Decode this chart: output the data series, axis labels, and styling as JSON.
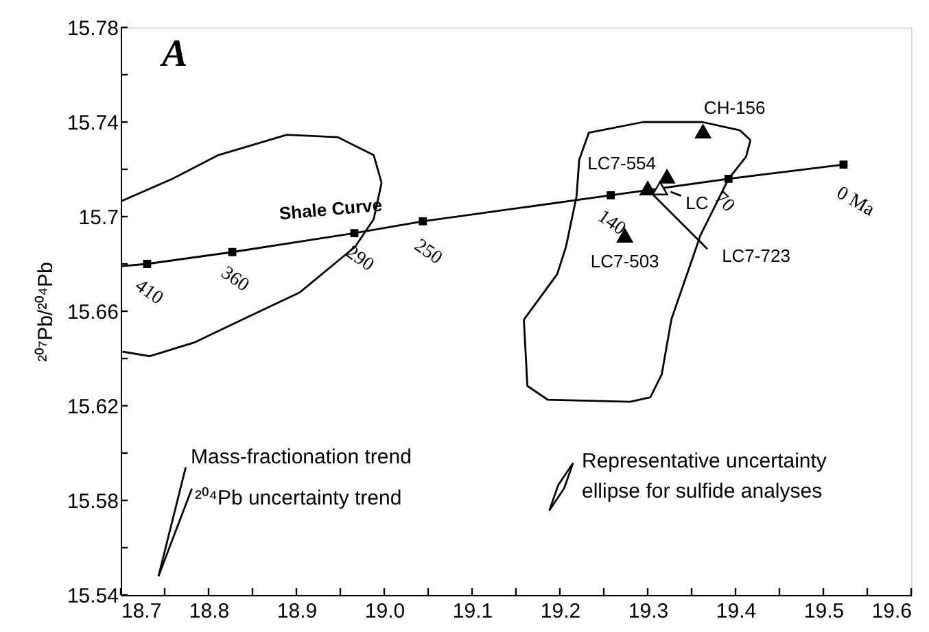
{
  "chart_data": {
    "type": "line",
    "ylabel": "²⁰⁷Pb/²⁰⁴Pb",
    "xlim": [
      18.7,
      19.6
    ],
    "ylim": [
      15.54,
      15.78
    ],
    "xticks": [
      18.7,
      {
        "value": 18.75,
        "label": null
      },
      18.8,
      {
        "value": 18.85,
        "label": null
      },
      18.9,
      {
        "value": 18.95,
        "label": null
      },
      {
        "value": 19.0,
        "label": "19.0"
      },
      {
        "value": 19.05,
        "label": null
      },
      19.1,
      {
        "value": 19.15,
        "label": null
      },
      19.2,
      {
        "value": 19.25,
        "label": null
      },
      19.3,
      {
        "value": 19.35,
        "label": null
      },
      19.4,
      {
        "value": 19.45,
        "label": null
      },
      19.5,
      {
        "value": 19.55,
        "label": null
      },
      19.6
    ],
    "yticks": [
      15.54,
      {
        "value": 15.56,
        "label": null
      },
      15.58,
      {
        "value": 15.6,
        "label": null
      },
      15.62,
      {
        "value": 15.64,
        "label": null
      },
      15.66,
      {
        "value": 15.68,
        "label": null
      },
      15.7,
      {
        "value": 15.72,
        "label": null
      },
      15.74,
      {
        "value": 15.76,
        "label": null
      },
      15.78
    ],
    "grid": false,
    "series": [
      {
        "color": "#000000",
        "x": [
          18.7,
          18.73,
          18.827,
          18.966,
          19.044,
          19.258,
          19.392,
          19.523
        ],
        "values": [
          15.679,
          15.68,
          15.685,
          15.693,
          15.698,
          15.709,
          15.716,
          15.722
        ]
      },
      {
        "type": "scatter",
        "marker": "square",
        "color": "#000000",
        "x": [
          18.73,
          18.827,
          18.966,
          19.044,
          19.258,
          19.392,
          19.523
        ],
        "values": [
          15.68,
          15.685,
          15.693,
          15.698,
          15.709,
          15.716,
          15.722
        ]
      },
      {
        "color": "#010101",
        "x": [
          19.159,
          19.197,
          19.207,
          19.219,
          19.222,
          19.233,
          19.295,
          19.362,
          19.405,
          19.417
        ],
        "values": [
          15.6564,
          15.6757,
          15.6873,
          15.7086,
          15.724,
          15.7355,
          15.74,
          15.74,
          15.7365,
          15.7323
        ]
      },
      {
        "color": "#020202",
        "x": [
          19.159,
          19.163,
          19.186,
          19.28,
          19.303,
          19.316,
          19.327,
          19.352,
          19.36,
          19.392,
          19.412,
          19.417
        ],
        "values": [
          15.6564,
          15.6284,
          15.6226,
          15.6217,
          15.6236,
          15.6333,
          15.6566,
          15.6834,
          15.6921,
          15.7159,
          15.7253,
          15.7323
        ]
      },
      {
        "color": "#030303",
        "x": [
          18.701,
          18.759,
          18.811,
          18.889,
          18.947,
          18.988,
          18.997
        ],
        "values": [
          15.7066,
          15.716,
          15.726,
          15.7346,
          15.7336,
          15.726,
          15.7143
        ]
      },
      {
        "color": "#040404",
        "x": [
          18.702,
          18.733,
          18.784,
          18.838,
          18.904,
          18.967,
          18.988,
          18.997
        ],
        "values": [
          15.6429,
          15.641,
          15.6468,
          15.6564,
          15.668,
          15.6873,
          15.6989,
          15.7143
        ]
      },
      {
        "type": "scatter",
        "marker": "triangle",
        "color": "#000000",
        "x": [
          19.363,
          19.322,
          19.3,
          19.274
        ],
        "values": [
          15.736,
          15.717,
          15.712,
          15.692
        ]
      },
      {
        "type": "scatter",
        "marker": "triangle",
        "color": "#ffffff",
        "x": [
          19.314
        ],
        "values": [
          15.712
        ]
      },
      {
        "color": "#050505",
        "x": [
          19.326,
          19.338
        ],
        "values": [
          15.7105,
          15.7088
        ]
      },
      {
        "color": "#060606",
        "x": [
          19.3,
          19.368
        ],
        "values": [
          15.7115,
          15.6863
        ]
      },
      {
        "color": "#070707",
        "x": [
          18.743,
          18.774
        ],
        "values": [
          15.548,
          15.594
        ]
      },
      {
        "color": "#080808",
        "x": [
          18.743,
          18.781
        ],
        "values": [
          15.548,
          15.585
        ]
      },
      {
        "color": "#090909",
        "x": [
          19.188,
          19.198,
          19.215
        ],
        "values": [
          15.5757,
          15.5864,
          15.5958
        ]
      },
      {
        "color": "#0a0a0a",
        "x": [
          19.188,
          19.205,
          19.215
        ],
        "values": [
          15.5757,
          15.5852,
          15.5958
        ]
      }
    ],
    "annotations": [
      "A",
      "Shale Curve",
      {
        "text": "410",
        "x": 18.73,
        "y": 15.68
      },
      {
        "text": "360",
        "x": 18.827,
        "y": 15.685
      },
      {
        "text": "290",
        "x": 18.966,
        "y": 15.693
      },
      {
        "text": "250",
        "x": 19.044,
        "y": 15.698
      },
      {
        "text": "140",
        "x": 19.258,
        "y": 15.709
      },
      {
        "text": "70",
        "x": 19.392,
        "y": 15.716
      },
      {
        "text": "0 Ma",
        "x": 19.523,
        "y": 15.722
      },
      {
        "text": "CH-156",
        "x": 19.363,
        "y": 15.736
      },
      {
        "text": "LC7-554",
        "x": 19.322,
        "y": 15.717
      },
      {
        "text": "LC",
        "x": 19.314,
        "y": 15.712
      },
      {
        "text": "LC7-503",
        "x": 19.274,
        "y": 15.692
      },
      "LC7-723",
      "Mass-fractionation trend",
      "²⁰⁴Pb uncertainty trend",
      "Representative uncertainty ellipse for sulfide analyses"
    ]
  }
}
